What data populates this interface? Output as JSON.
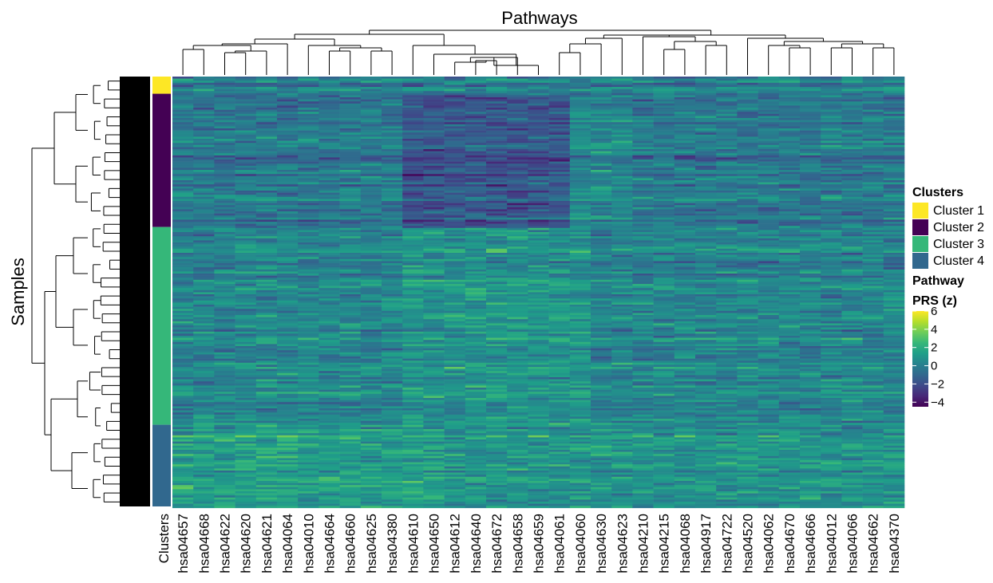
{
  "chart_data": {
    "type": "heatmap",
    "title": "Pathways",
    "ylabel": "Samples",
    "annotation_column_label": "Clusters",
    "columns": [
      "hsa04657",
      "hsa04668",
      "hsa04622",
      "hsa04620",
      "hsa04621",
      "hsa04064",
      "hsa04010",
      "hsa04664",
      "hsa04660",
      "hsa04625",
      "hsa04380",
      "hsa04610",
      "hsa04650",
      "hsa04612",
      "hsa04640",
      "hsa04672",
      "hsa04658",
      "hsa04659",
      "hsa04061",
      "hsa04060",
      "hsa04630",
      "hsa04623",
      "hsa04210",
      "hsa04215",
      "hsa04068",
      "hsa04917",
      "hsa04722",
      "hsa04520",
      "hsa04062",
      "hsa04670",
      "hsa04666",
      "hsa04012",
      "hsa04066",
      "hsa04662",
      "hsa04370"
    ],
    "clusters_legend": {
      "title": "Clusters",
      "entries": [
        {
          "label": "Cluster 1",
          "color": "#FDE725"
        },
        {
          "label": "Cluster 2",
          "color": "#440154"
        },
        {
          "label": "Cluster 3",
          "color": "#35B779"
        },
        {
          "label": "Cluster 4",
          "color": "#31688E"
        }
      ]
    },
    "cluster_row_fractions": [
      0.04,
      0.31,
      0.46,
      0.19
    ],
    "color_scale": {
      "title_line1": "Pathway",
      "title_line2": "PRS (z)",
      "ticks": [
        "6",
        "4",
        "2",
        "0",
        "−2",
        "−4"
      ],
      "tick_values": [
        6,
        4,
        2,
        0,
        -2,
        -4
      ],
      "range": [
        -4.5,
        6
      ],
      "palette": "viridis"
    },
    "grid": false,
    "legend_position": "right"
  }
}
